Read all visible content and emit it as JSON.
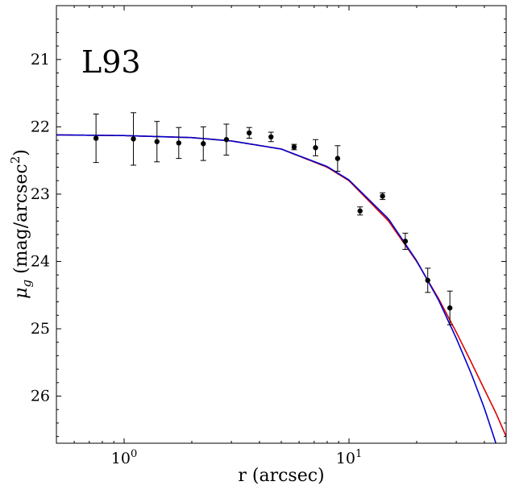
{
  "chart_data": {
    "type": "scatter",
    "panel_label": "L93",
    "xlabel": "r (arcsec)",
    "ylabel_base": "μ",
    "ylabel_sub": "g",
    "ylabel_rest": " (mag/arcsec",
    "ylabel_sup": "2",
    "ylabel_close": ")",
    "x_scale": "log",
    "xlim": [
      0.5,
      50
    ],
    "ylim": [
      26.7,
      20.2
    ],
    "y_inverted": true,
    "x_ticks": [
      {
        "value": 1,
        "base": "10",
        "exp": "0"
      },
      {
        "value": 10,
        "base": "10",
        "exp": "1"
      }
    ],
    "y_ticks": [
      21,
      22,
      23,
      24,
      25,
      26
    ],
    "grid": false,
    "legend": "none",
    "series": [
      {
        "kind": "points_with_errorbars",
        "color": "#000000",
        "points": [
          {
            "x": 0.75,
            "y": 22.17,
            "err": 0.36
          },
          {
            "x": 1.1,
            "y": 22.18,
            "err": 0.39
          },
          {
            "x": 1.4,
            "y": 22.22,
            "err": 0.3
          },
          {
            "x": 1.75,
            "y": 22.24,
            "err": 0.23
          },
          {
            "x": 2.25,
            "y": 22.25,
            "err": 0.25
          },
          {
            "x": 2.85,
            "y": 22.19,
            "err": 0.23
          },
          {
            "x": 3.6,
            "y": 22.09,
            "err": 0.08
          },
          {
            "x": 4.5,
            "y": 22.15,
            "err": 0.07
          },
          {
            "x": 5.7,
            "y": 22.3,
            "err": 0.04
          },
          {
            "x": 7.1,
            "y": 22.31,
            "err": 0.12
          },
          {
            "x": 8.9,
            "y": 22.47,
            "err": 0.19
          },
          {
            "x": 11.2,
            "y": 23.25,
            "err": 0.06
          },
          {
            "x": 14.1,
            "y": 23.03,
            "err": 0.05
          },
          {
            "x": 17.8,
            "y": 23.7,
            "err": 0.12
          },
          {
            "x": 22.4,
            "y": 24.28,
            "err": 0.18
          },
          {
            "x": 28.1,
            "y": 24.69,
            "err": 0.25
          }
        ]
      },
      {
        "kind": "model_curve",
        "color": "#dd0000",
        "x": [
          0.5,
          1,
          2,
          3,
          5,
          8,
          10,
          15,
          20,
          25,
          30,
          35,
          40,
          45,
          50
        ],
        "y": [
          22.12,
          22.13,
          22.16,
          22.21,
          22.33,
          22.6,
          22.8,
          23.4,
          24.0,
          24.55,
          25.05,
          25.5,
          25.9,
          26.25,
          26.6
        ]
      },
      {
        "kind": "model_curve",
        "color": "#0000cc",
        "x": [
          0.5,
          1,
          2,
          3,
          5,
          8,
          10,
          15,
          20,
          25,
          30,
          35,
          40,
          45,
          50
        ],
        "y": [
          22.12,
          22.13,
          22.16,
          22.21,
          22.33,
          22.59,
          22.79,
          23.37,
          23.99,
          24.57,
          25.14,
          25.67,
          26.18,
          26.7,
          27.2
        ]
      }
    ]
  }
}
